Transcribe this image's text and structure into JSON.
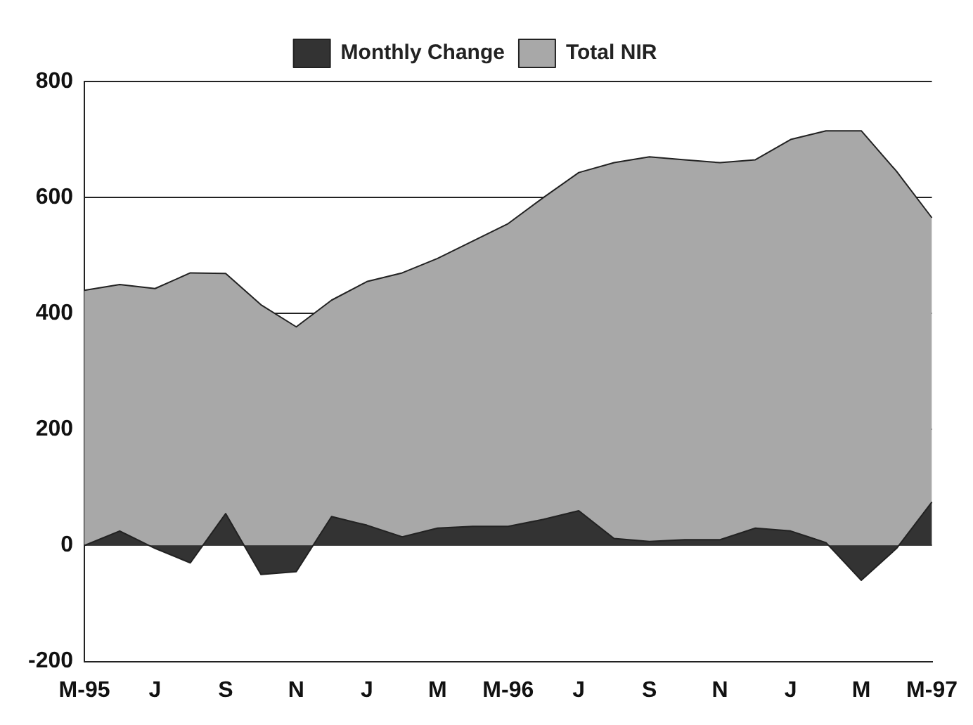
{
  "chart_data": {
    "type": "area",
    "categories": [
      "M-95",
      null,
      "J",
      null,
      "S",
      null,
      "N",
      null,
      "J",
      null,
      "M",
      null,
      "M-96",
      null,
      "J",
      null,
      "S",
      null,
      "N",
      null,
      "J",
      null,
      "M",
      null,
      "M-97"
    ],
    "series": [
      {
        "name": "Total NIR",
        "color": "#a8a8a8",
        "values": [
          440,
          450,
          443,
          470,
          469,
          415,
          377,
          423,
          455,
          470,
          495,
          525,
          555,
          600,
          643,
          660,
          670,
          665,
          660,
          665,
          700,
          715,
          715,
          645,
          565
        ]
      },
      {
        "name": "Monthly Change",
        "color": "#333333",
        "values": [
          0,
          25,
          -5,
          -30,
          55,
          -50,
          -45,
          50,
          35,
          15,
          30,
          33,
          33,
          45,
          60,
          12,
          7,
          10,
          10,
          30,
          25,
          5,
          -60,
          -5,
          75
        ]
      }
    ],
    "ylim": [
      -200,
      800
    ],
    "yticks": [
      -200,
      0,
      200,
      400,
      600,
      800
    ],
    "grid": "y",
    "legend": "top"
  }
}
